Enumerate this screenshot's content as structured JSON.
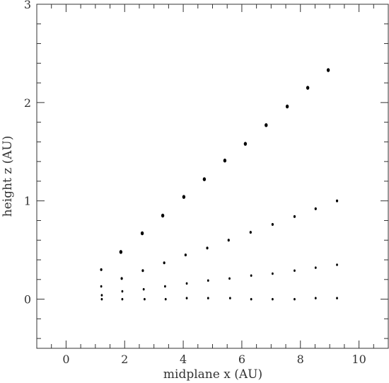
{
  "chart_data": {
    "type": "scatter",
    "xlabel": "midplane x (AU)",
    "ylabel": "height z (AU)",
    "xlim": [
      -1,
      11
    ],
    "ylim": [
      -0.5,
      3
    ],
    "xticks": [
      0,
      2,
      4,
      6,
      8,
      10
    ],
    "yticks": [
      0,
      1,
      2,
      3
    ],
    "xtick_labels": [
      "0",
      "2",
      "4",
      "6",
      "8",
      "10"
    ],
    "ytick_labels": [
      "0",
      "1",
      "2",
      "3"
    ],
    "grid": false,
    "legend": "none",
    "marker_color": "#000000",
    "series": [
      {
        "points": [
          [
            1.87,
            0.48
          ],
          [
            2.6,
            0.67
          ],
          [
            3.3,
            0.85
          ],
          [
            4.02,
            1.04
          ],
          [
            4.72,
            1.22
          ],
          [
            5.42,
            1.41
          ],
          [
            6.12,
            1.58
          ],
          [
            6.83,
            1.77
          ],
          [
            7.55,
            1.96
          ],
          [
            8.25,
            2.15
          ],
          [
            8.95,
            2.33
          ]
        ]
      },
      {
        "points": [
          [
            1.2,
            0.3
          ],
          [
            1.9,
            0.21
          ],
          [
            2.62,
            0.29
          ],
          [
            3.35,
            0.37
          ],
          [
            4.08,
            0.45
          ],
          [
            4.82,
            0.52
          ],
          [
            5.55,
            0.6
          ],
          [
            6.3,
            0.68
          ],
          [
            7.05,
            0.76
          ],
          [
            7.8,
            0.84
          ],
          [
            8.52,
            0.92
          ],
          [
            9.25,
            1.0
          ]
        ]
      },
      {
        "points": [
          [
            1.2,
            0.13
          ],
          [
            1.92,
            0.08
          ],
          [
            2.65,
            0.1
          ],
          [
            3.38,
            0.13
          ],
          [
            4.12,
            0.16
          ],
          [
            4.85,
            0.19
          ],
          [
            5.58,
            0.21
          ],
          [
            6.32,
            0.24
          ],
          [
            7.05,
            0.26
          ],
          [
            7.8,
            0.29
          ],
          [
            8.52,
            0.32
          ],
          [
            9.25,
            0.35
          ]
        ]
      },
      {
        "points": [
          [
            1.22,
            0.04
          ],
          [
            1.22,
            0.0
          ],
          [
            1.92,
            0.0
          ],
          [
            2.68,
            0.0
          ],
          [
            3.4,
            0.0
          ],
          [
            4.12,
            0.01
          ],
          [
            4.85,
            0.01
          ],
          [
            5.6,
            0.01
          ],
          [
            6.32,
            0.0
          ],
          [
            7.05,
            0.0
          ],
          [
            7.8,
            0.0
          ],
          [
            8.52,
            0.01
          ],
          [
            9.25,
            0.01
          ]
        ]
      }
    ]
  }
}
